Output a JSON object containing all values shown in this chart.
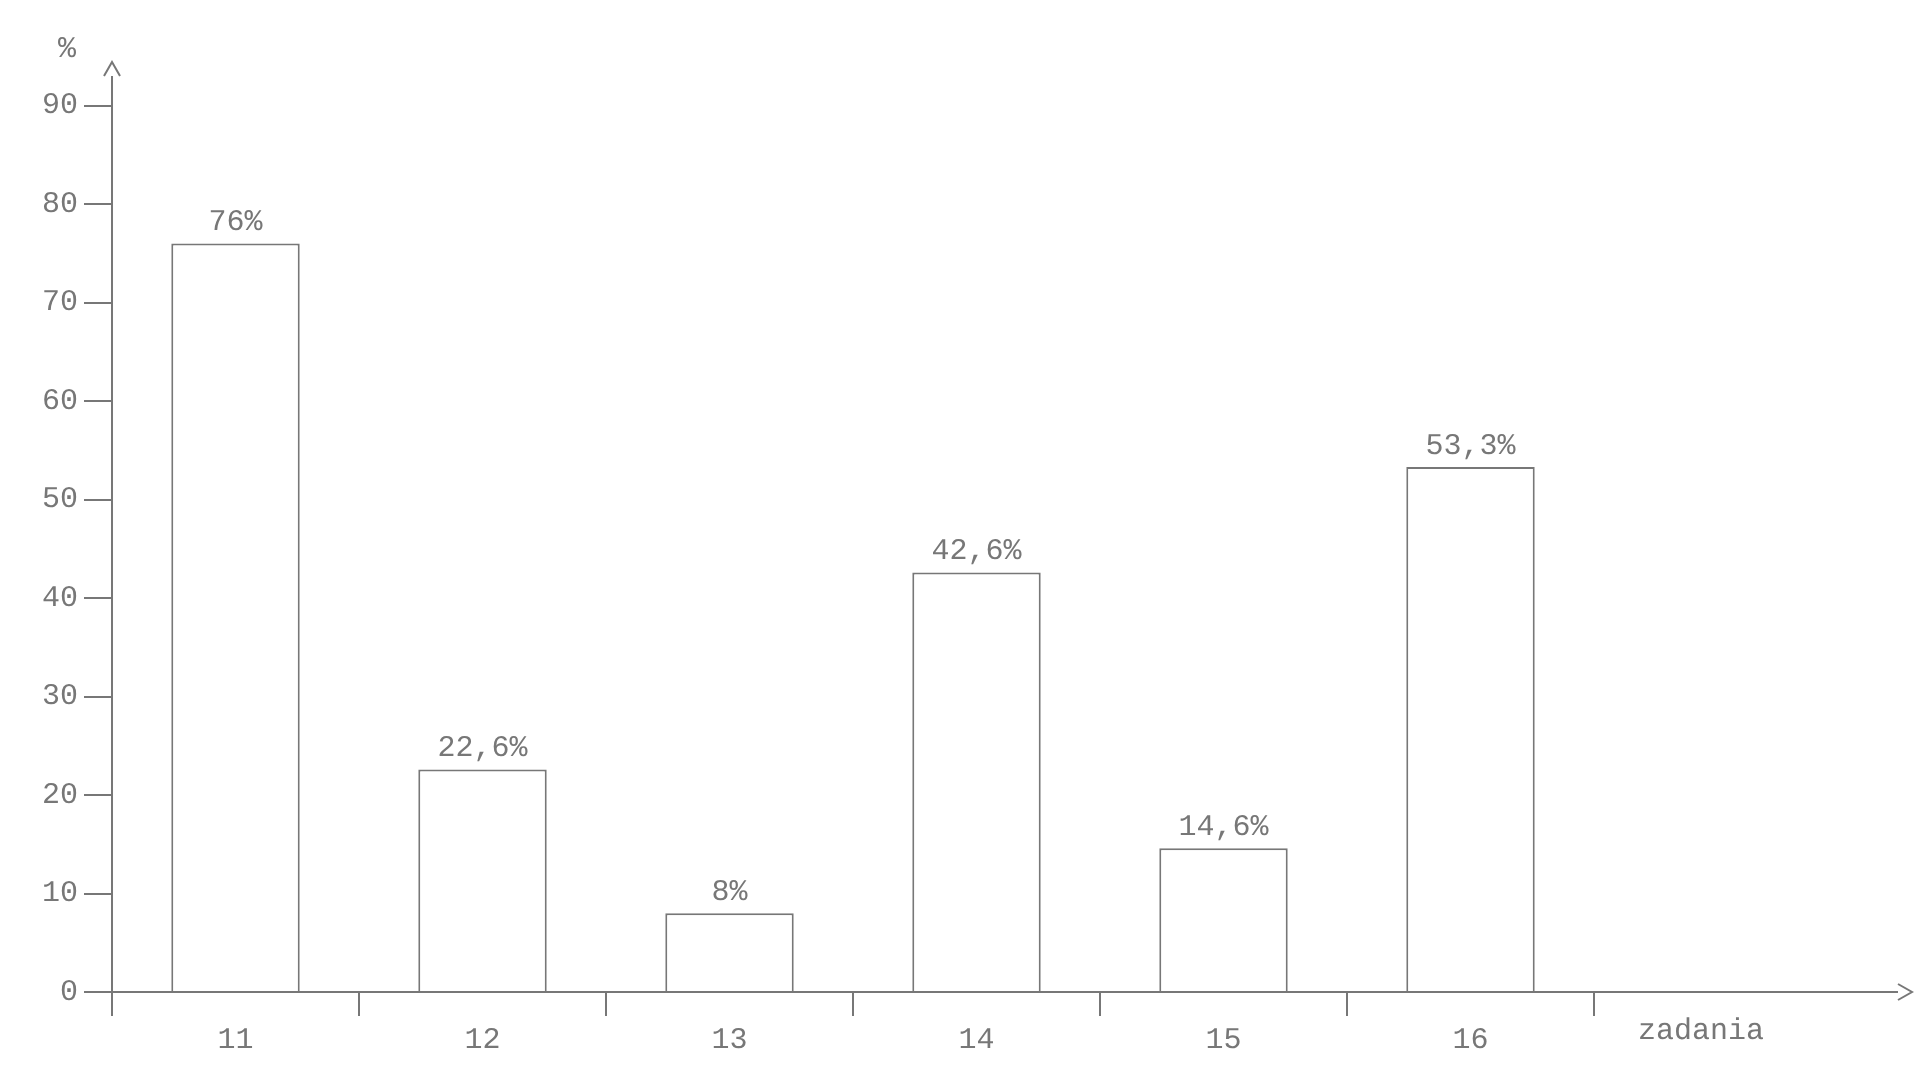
{
  "chart_data": {
    "type": "bar",
    "xlabel": "zadania",
    "ylabel": "%",
    "categories": [
      "11",
      "12",
      "13",
      "14",
      "15",
      "16"
    ],
    "values": [
      76,
      22.6,
      8,
      42.6,
      14.6,
      53.3
    ],
    "value_labels": [
      "76%",
      "22,6%",
      "8%",
      "42,6%",
      "14,6%",
      "53,3%"
    ],
    "color": "#ffffff",
    "ylim": [
      0,
      93
    ],
    "yticks": [
      0,
      10,
      20,
      30,
      40,
      50,
      60,
      70,
      80,
      90
    ],
    "grid": false,
    "legend": false
  }
}
